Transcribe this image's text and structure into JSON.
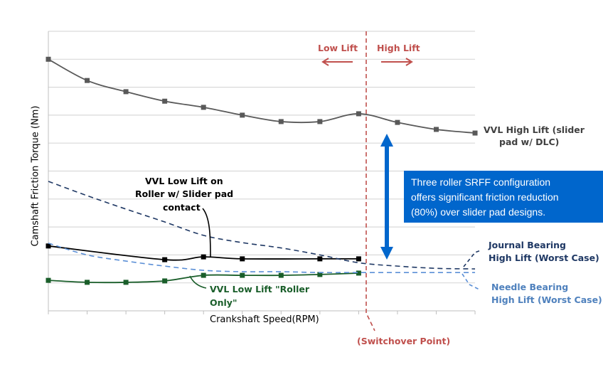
{
  "chart_data": {
    "type": "line",
    "title": "",
    "xlabel": "Crankshaft Speed(RPM)",
    "ylabel": "Camshaft Friction Torque (Nm)",
    "x": [
      0,
      1,
      2,
      3,
      4,
      5,
      6,
      7,
      8,
      9,
      10,
      11
    ],
    "x_tick_labels_visible": false,
    "y_tick_labels_visible": false,
    "ylim": [
      0,
      10
    ],
    "grid": true,
    "series": [
      {
        "name": "VVL High Lift (slider pad w/ DLC)",
        "style": "solid",
        "marker": "square",
        "color": "#595959",
        "x": [
          0,
          1,
          2,
          3,
          4,
          5,
          6,
          7,
          8,
          9,
          10,
          11
        ],
        "values": [
          9.0,
          8.24,
          7.84,
          7.5,
          7.28,
          7.0,
          6.77,
          6.77,
          7.05,
          6.74,
          6.49,
          6.36
        ]
      },
      {
        "name": "VVL Low Lift on Roller w/ Slider pad contact",
        "style": "solid",
        "marker": "square",
        "color": "#000000",
        "x": [
          0,
          3,
          4,
          5,
          7,
          8
        ],
        "values": [
          2.32,
          1.83,
          1.93,
          1.86,
          1.86,
          1.86
        ]
      },
      {
        "name": "VVL Low Lift \"Roller Only\"",
        "style": "solid",
        "marker": "square",
        "color": "#1a5e2a",
        "x": [
          0,
          1,
          2,
          3,
          4,
          5,
          6,
          7,
          8
        ],
        "values": [
          1.09,
          1.02,
          1.02,
          1.07,
          1.27,
          1.27,
          1.27,
          1.3,
          1.35
        ]
      },
      {
        "name": "Journal Bearing High Lift (Worst Case)",
        "style": "dashed",
        "marker": "none",
        "color": "#1f3864",
        "x": [
          0,
          1,
          2,
          3,
          4,
          5,
          6,
          7,
          8,
          9,
          10,
          11
        ],
        "values": [
          4.63,
          4.12,
          3.64,
          3.18,
          2.7,
          2.44,
          2.25,
          2.0,
          1.72,
          1.6,
          1.52,
          1.5
        ]
      },
      {
        "name": "Needle Bearing High Lift (Worst Case)",
        "style": "dashed",
        "marker": "none",
        "color": "#5b8fd6",
        "x": [
          0,
          1,
          2,
          3,
          4,
          5,
          6,
          7,
          8,
          9,
          10,
          11
        ],
        "values": [
          2.42,
          2.0,
          1.78,
          1.6,
          1.45,
          1.4,
          1.4,
          1.37,
          1.37,
          1.37,
          1.37,
          1.37
        ]
      }
    ],
    "annotations": [
      {
        "text": "Low Lift",
        "arrow": "left"
      },
      {
        "text": "High Lift",
        "arrow": "right"
      },
      {
        "text": "(Switchover Point)",
        "at_x": 8.2
      },
      {
        "text": "Three roller SRFF configuration offers significant friction reduction (80%)  over slider pad designs."
      }
    ]
  },
  "axes": {
    "xlabel": "Crankshaft Speed(RPM)",
    "ylabel": "Camshaft Friction Torque (Nm)"
  },
  "labels": {
    "low_lift": "Low Lift",
    "high_lift": "High Lift",
    "switchover": "(Switchover Point)",
    "high_lift_series_l1": "VVL High Lift (slider",
    "high_lift_series_l2": "pad w/ DLC)",
    "roller_slider_l1": "VVL Low Lift on",
    "roller_slider_l2": "Roller w/ Slider pad",
    "roller_slider_l3": "contact",
    "roller_only_l1": "VVL Low Lift \"Roller",
    "roller_only_l2": "Only\"",
    "journal_l1": "Journal Bearing",
    "journal_l2": "High Lift (Worst Case)",
    "needle_l1": "Needle Bearing",
    "needle_l2": "High Lift (Worst Case)"
  },
  "callout": {
    "line1": "Three roller SRFF configuration",
    "line2": "offers significant friction reduction",
    "line3": "(80%)  over slider pad designs."
  },
  "colors": {
    "switchover": "#c0504d",
    "callout_bg": "#0066cc",
    "gridline": "#d9d9d9"
  }
}
